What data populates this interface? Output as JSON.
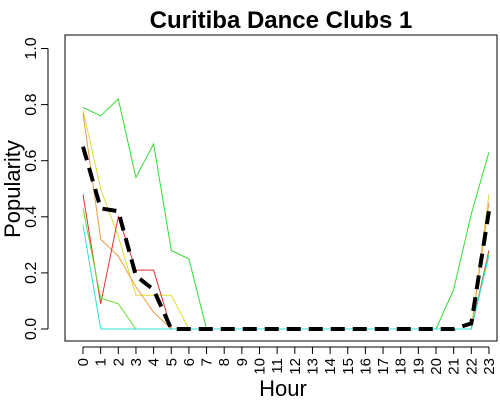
{
  "chart_data": {
    "type": "line",
    "title": "Curitiba Dance Clubs 1",
    "xlabel": "Hour",
    "ylabel": "Popularity",
    "categories": [
      "0",
      "1",
      "2",
      "3",
      "4",
      "5",
      "6",
      "7",
      "8",
      "9",
      "10",
      "11",
      "12",
      "13",
      "14",
      "15",
      "16",
      "17",
      "18",
      "19",
      "20",
      "21",
      "22",
      "23"
    ],
    "ylim": [
      0,
      1.0
    ],
    "yticks": [
      "0.0",
      "0.2",
      "0.4",
      "0.6",
      "0.8",
      "1.0"
    ],
    "grid": false,
    "series": [
      {
        "color": "#33DD33",
        "values": [
          0.79,
          0.76,
          0.82,
          0.54,
          0.66,
          0.28,
          0.25,
          0,
          0,
          0,
          0,
          0,
          0,
          0,
          0,
          0,
          0,
          0,
          0,
          0,
          0,
          0.14,
          0.41,
          0.63
        ]
      },
      {
        "color": "#DDDD33",
        "values": [
          0.78,
          0.5,
          0.33,
          0.12,
          0.12,
          0.12,
          0,
          0,
          0,
          0,
          0,
          0,
          0,
          0,
          0,
          0,
          0,
          0,
          0,
          0,
          0,
          0,
          0,
          0.48
        ]
      },
      {
        "color": "#EE9944",
        "values": [
          0.77,
          0.32,
          0.26,
          0.15,
          0.06,
          0,
          0,
          0,
          0,
          0,
          0,
          0,
          0,
          0,
          0,
          0,
          0,
          0,
          0,
          0,
          0,
          0,
          0,
          0.45
        ]
      },
      {
        "color": "#DD3333",
        "values": [
          0.48,
          0.09,
          0.4,
          0.21,
          0.21,
          0,
          0,
          0,
          0,
          0,
          0,
          0,
          0,
          0,
          0,
          0,
          0,
          0,
          0,
          0,
          0,
          0,
          0,
          0.28
        ]
      },
      {
        "color": "#66DD33",
        "values": [
          0.43,
          0.11,
          0.09,
          0,
          0,
          0,
          0,
          0,
          0,
          0,
          0,
          0,
          0,
          0,
          0,
          0,
          0,
          0,
          0,
          0,
          0,
          0,
          0,
          0.27
        ]
      },
      {
        "color": "#33DDDD",
        "values": [
          0.37,
          0,
          0,
          0,
          0,
          0,
          0,
          0,
          0,
          0,
          0,
          0,
          0,
          0,
          0,
          0,
          0,
          0,
          0,
          0,
          0,
          0,
          0,
          0.26
        ]
      },
      {
        "color": "#000000",
        "style": "mean",
        "values": [
          0.65,
          0.43,
          0.42,
          0.19,
          0.14,
          0,
          0,
          0,
          0,
          0,
          0,
          0,
          0,
          0,
          0,
          0,
          0,
          0,
          0,
          0,
          0,
          0,
          0.02,
          0.42
        ]
      }
    ]
  }
}
